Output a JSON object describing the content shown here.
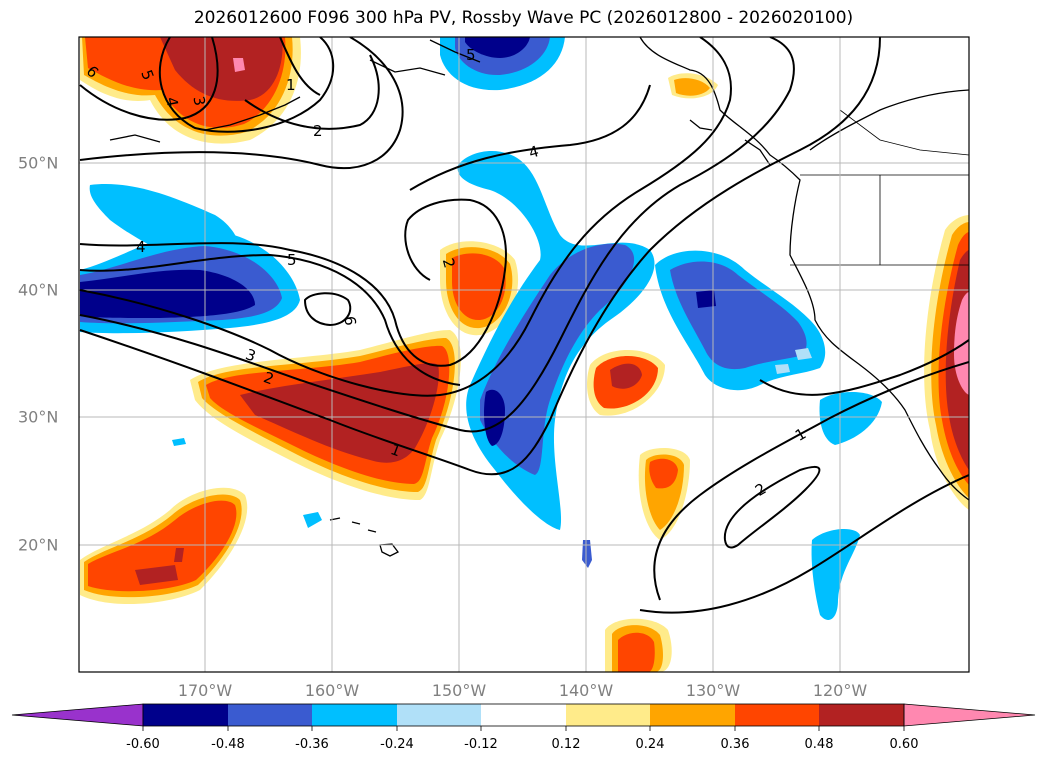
{
  "title": "2026012600 F096 300 hPa PV, Rossby Wave PC (2026012800 - 2026020100)",
  "lon_labels": [
    "170°W",
    "160°W",
    "150°W",
    "140°W",
    "130°W",
    "120°W"
  ],
  "lat_labels": [
    "50°N",
    "40°N",
    "30°N",
    "20°N"
  ],
  "contour_labels": [
    "6",
    "5",
    "4",
    "3",
    "1",
    "2",
    "5",
    "4",
    "5",
    "2",
    "6",
    "3",
    "2",
    "1",
    "4",
    "1",
    "2"
  ],
  "colorbar": {
    "ticks": [
      "-0.60",
      "-0.48",
      "-0.36",
      "-0.24",
      "-0.12",
      "0.12",
      "0.24",
      "0.36",
      "0.48",
      "0.60"
    ],
    "colors": [
      "#9932cc",
      "#00008b",
      "#3a5bd0",
      "#00bfff",
      "#b0e0f8",
      "#ffffff",
      "#ffeb8a",
      "#ffa500",
      "#ff4500",
      "#b22222",
      "#ff88b0"
    ]
  }
}
